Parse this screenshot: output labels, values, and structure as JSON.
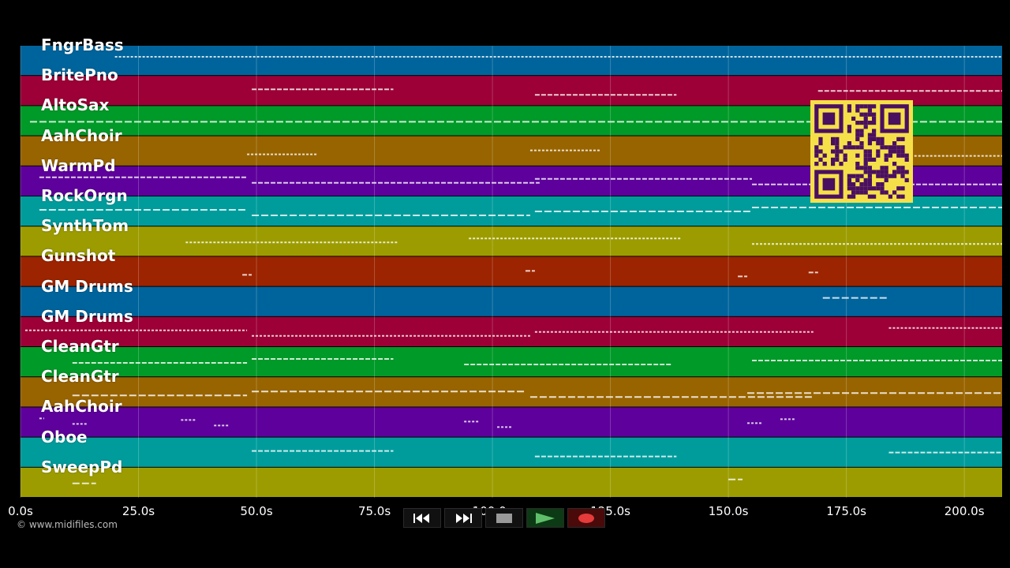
{
  "tracks": [
    {
      "name": "FngrBass",
      "color": "#00649c"
    },
    {
      "name": "BritePno",
      "color": "#9c0036"
    },
    {
      "name": "AltoSax",
      "color": "#009a28"
    },
    {
      "name": "AahChoir",
      "color": "#986400"
    },
    {
      "name": "WarmPd",
      "color": "#5e009c"
    },
    {
      "name": "RockOrgn",
      "color": "#009c9c"
    },
    {
      "name": "SynthTom",
      "color": "#9c9c00"
    },
    {
      "name": "Gunshot",
      "color": "#9c2400"
    },
    {
      "name": "GM Drums",
      "color": "#00649c"
    },
    {
      "name": "GM Drums",
      "color": "#9c0036"
    },
    {
      "name": "CleanGtr",
      "color": "#009a28"
    },
    {
      "name": "CleanGtr",
      "color": "#986400"
    },
    {
      "name": "AahChoir",
      "color": "#5e009c"
    },
    {
      "name": "Oboe",
      "color": "#009c9c"
    },
    {
      "name": "SweepPd",
      "color": "#9c9c00"
    }
  ],
  "timeline": {
    "ticks": [
      "0.0s",
      "25.0s",
      "50.0s",
      "75.0s",
      "100.0s",
      "125.0s",
      "150.0s",
      "175.0s",
      "200.0s"
    ],
    "max_seconds": 208
  },
  "credit": "© www.midifiles.com",
  "transport": {
    "buttons": [
      {
        "name": "rewind-button",
        "icon": "rewind-icon"
      },
      {
        "name": "fast-forward-button",
        "icon": "fast-forward-icon"
      },
      {
        "name": "stop-button",
        "icon": "stop-icon"
      },
      {
        "name": "play-button",
        "icon": "play-icon"
      },
      {
        "name": "record-button",
        "icon": "record-icon"
      }
    ]
  },
  "qr_code": {
    "icon": "qr-code-icon",
    "color": "#f6e04a"
  }
}
